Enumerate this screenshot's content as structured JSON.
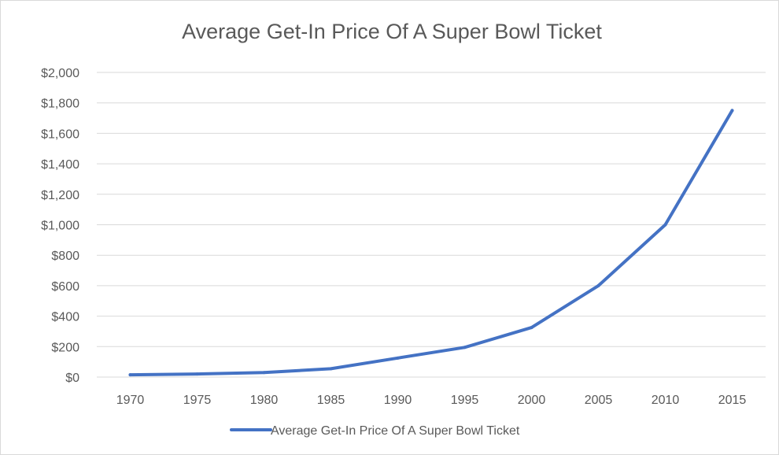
{
  "chart_data": {
    "type": "line",
    "title": "Average Get-In Price Of A Super Bowl Ticket",
    "xlabel": "",
    "ylabel": "",
    "categories": [
      "1970",
      "1975",
      "1980",
      "1985",
      "1990",
      "1995",
      "2000",
      "2005",
      "2010",
      "2015"
    ],
    "series": [
      {
        "name": "Average Get-In Price Of A Super Bowl Ticket",
        "values": [
          15,
          20,
          30,
          55,
          125,
          195,
          325,
          600,
          1000,
          1750
        ],
        "color": "#4472c4"
      }
    ],
    "ylim": [
      0,
      2000
    ],
    "y_ticks": [
      0,
      200,
      400,
      600,
      800,
      1000,
      1200,
      1400,
      1600,
      1800,
      2000
    ],
    "y_tick_labels": [
      "$0",
      "$200",
      "$400",
      "$600",
      "$800",
      "$1,000",
      "$1,200",
      "$1,400",
      "$1,600",
      "$1,800",
      "$2,000"
    ],
    "grid": true,
    "legend_position": "bottom"
  }
}
